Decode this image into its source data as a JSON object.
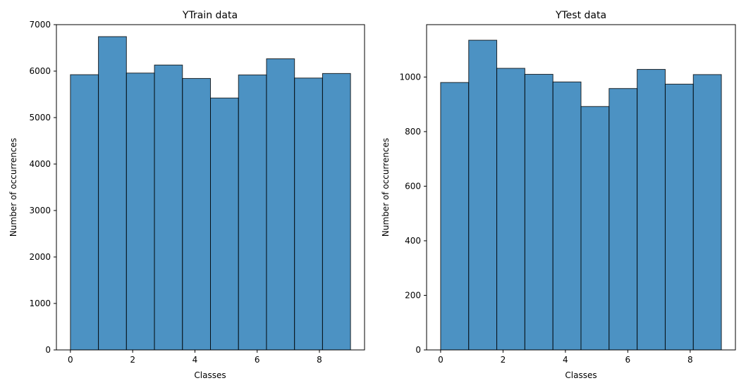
{
  "chart_data": [
    {
      "type": "bar",
      "title": "YTrain data",
      "xlabel": "Classes",
      "ylabel": "Number of occurrences",
      "bin_edges": [
        0,
        0.9,
        1.8,
        2.7,
        3.6,
        4.5,
        5.4,
        6.3,
        7.2,
        8.1,
        9.0
      ],
      "values": [
        5923,
        6742,
        5958,
        6131,
        5842,
        5421,
        5918,
        6265,
        5851,
        5949
      ],
      "xlim": [
        -0.45,
        9.45
      ],
      "ylim": [
        0,
        7000
      ],
      "xticks": [
        0,
        2,
        4,
        6,
        8
      ],
      "yticks": [
        0,
        1000,
        2000,
        3000,
        4000,
        5000,
        6000,
        7000
      ],
      "bar_color": "#1f77b4"
    },
    {
      "type": "bar",
      "title": "YTest data",
      "xlabel": "Classes",
      "ylabel": "Number of occurrences",
      "bin_edges": [
        0,
        0.9,
        1.8,
        2.7,
        3.6,
        4.5,
        5.4,
        6.3,
        7.2,
        8.1,
        9.0
      ],
      "values": [
        980,
        1135,
        1032,
        1010,
        982,
        892,
        958,
        1028,
        974,
        1009
      ],
      "xlim": [
        -0.45,
        9.45
      ],
      "ylim": [
        0,
        1192
      ],
      "xticks": [
        0,
        2,
        4,
        6,
        8
      ],
      "yticks": [
        0,
        200,
        400,
        600,
        800,
        1000
      ],
      "bar_color": "#1f77b4"
    }
  ]
}
